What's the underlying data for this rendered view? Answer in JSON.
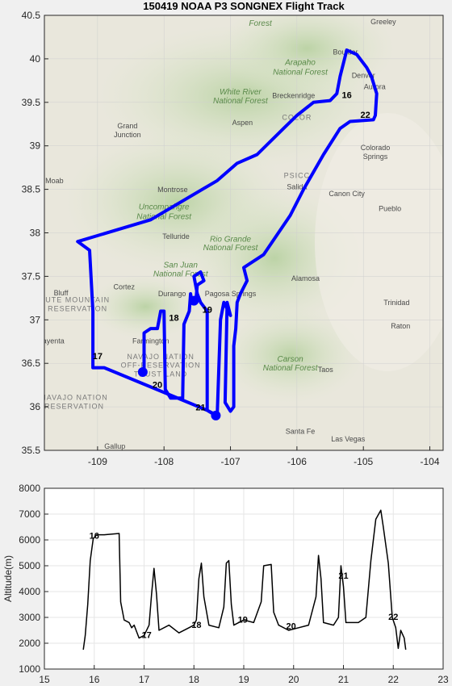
{
  "map_panel": {
    "title": "150419 NOAA P3 SONGNEX Flight Track",
    "lon_ticks": [
      "-109",
      "-108",
      "-107",
      "-106",
      "-105",
      "-104"
    ],
    "lat_ticks": [
      "40.5",
      "40",
      "39.5",
      "39",
      "38.5",
      "38",
      "37.5",
      "37",
      "36.5",
      "36",
      "35.5"
    ],
    "lon_range": [
      -109.8,
      -103.8
    ],
    "lat_range": [
      35.5,
      40.5
    ],
    "track_color": "#0000ff",
    "track": [
      [
        -107.22,
        35.9
      ],
      [
        -107.35,
        35.96
      ],
      [
        -108.9,
        36.45
      ],
      [
        -109.07,
        36.45
      ],
      [
        -109.07,
        37.1
      ],
      [
        -109.12,
        37.8
      ],
      [
        -109.3,
        37.9
      ],
      [
        -108.2,
        38.15
      ],
      [
        -107.2,
        38.6
      ],
      [
        -106.9,
        38.8
      ],
      [
        -106.6,
        38.9
      ],
      [
        -106.2,
        39.2
      ],
      [
        -106.0,
        39.35
      ],
      [
        -105.75,
        39.5
      ],
      [
        -105.5,
        39.52
      ],
      [
        -105.4,
        39.6
      ],
      [
        -105.35,
        39.8
      ],
      [
        -105.25,
        40.1
      ],
      [
        -105.1,
        40.05
      ],
      [
        -104.95,
        39.9
      ],
      [
        -104.88,
        39.8
      ],
      [
        -104.8,
        39.6
      ],
      [
        -104.82,
        39.35
      ],
      [
        -104.85,
        39.3
      ],
      [
        -105.2,
        39.28
      ],
      [
        -105.35,
        39.2
      ],
      [
        -105.6,
        38.9
      ],
      [
        -105.9,
        38.5
      ],
      [
        -106.1,
        38.2
      ],
      [
        -106.5,
        37.75
      ],
      [
        -106.8,
        37.6
      ],
      [
        -106.75,
        37.45
      ],
      [
        -106.85,
        37.3
      ],
      [
        -106.9,
        37.2
      ],
      [
        -106.92,
        36.9
      ],
      [
        -106.95,
        36.7
      ],
      [
        -106.95,
        36.0
      ],
      [
        -107.0,
        35.95
      ],
      [
        -107.08,
        36.05
      ],
      [
        -107.05,
        37.2
      ],
      [
        -107.0,
        37.05
      ],
      [
        -107.1,
        37.2
      ],
      [
        -107.15,
        37.0
      ],
      [
        -107.2,
        35.9
      ],
      [
        -107.35,
        35.96
      ],
      [
        -107.35,
        37.1
      ],
      [
        -107.45,
        37.2
      ],
      [
        -107.5,
        37.3
      ],
      [
        -107.55,
        37.5
      ],
      [
        -107.45,
        37.55
      ],
      [
        -107.4,
        37.45
      ],
      [
        -107.5,
        37.4
      ],
      [
        -107.52,
        37.22
      ],
      [
        -107.58,
        37.2
      ],
      [
        -107.6,
        37.3
      ],
      [
        -107.62,
        37.1
      ],
      [
        -107.7,
        36.95
      ],
      [
        -107.72,
        36.1
      ],
      [
        -107.9,
        36.1
      ],
      [
        -107.98,
        36.2
      ],
      [
        -108.0,
        37.1
      ],
      [
        -108.05,
        37.1
      ],
      [
        -108.1,
        36.9
      ],
      [
        -108.2,
        36.9
      ],
      [
        -108.3,
        36.85
      ],
      [
        -108.3,
        36.4
      ]
    ],
    "markers": [
      [
        -108.32,
        36.4
      ],
      [
        -107.55,
        37.22
      ],
      [
        -107.22,
        35.9
      ]
    ],
    "hour_labels": [
      {
        "text": "16",
        "lon": -105.25,
        "lat": 39.55
      },
      {
        "text": "22",
        "lon": -104.97,
        "lat": 39.32
      },
      {
        "text": "17",
        "lon": -109.0,
        "lat": 36.55
      },
      {
        "text": "18",
        "lon": -107.85,
        "lat": 36.99
      },
      {
        "text": "19",
        "lon": -107.35,
        "lat": 37.08
      },
      {
        "text": "20",
        "lon": -108.1,
        "lat": 36.22
      },
      {
        "text": "21",
        "lon": -107.45,
        "lat": 35.96
      }
    ],
    "places": [
      {
        "text": "Forest",
        "lon": -106.55,
        "lat": 40.38,
        "kind": "forest"
      },
      {
        "text": "Arapaho",
        "lon": -105.95,
        "lat": 39.93,
        "kind": "forest"
      },
      {
        "text": "National Forest",
        "lon": -105.95,
        "lat": 39.82,
        "kind": "forest"
      },
      {
        "text": "White River",
        "lon": -106.85,
        "lat": 39.59,
        "kind": "forest"
      },
      {
        "text": "National Forest",
        "lon": -106.85,
        "lat": 39.49,
        "kind": "forest"
      },
      {
        "text": "Uncompahgre",
        "lon": -108.0,
        "lat": 38.27,
        "kind": "forest"
      },
      {
        "text": "National Forest",
        "lon": -108.0,
        "lat": 38.16,
        "kind": "forest"
      },
      {
        "text": "Rio Grande",
        "lon": -107.0,
        "lat": 37.9,
        "kind": "forest"
      },
      {
        "text": "National Forest",
        "lon": -107.0,
        "lat": 37.8,
        "kind": "forest"
      },
      {
        "text": "San Juan",
        "lon": -107.75,
        "lat": 37.6,
        "kind": "forest"
      },
      {
        "text": "National Forest",
        "lon": -107.75,
        "lat": 37.5,
        "kind": "forest"
      },
      {
        "text": "Carson",
        "lon": -106.1,
        "lat": 36.52,
        "kind": "forest"
      },
      {
        "text": "National Forest",
        "lon": -106.1,
        "lat": 36.42,
        "kind": "forest"
      },
      {
        "text": "COLOR",
        "lon": -106.0,
        "lat": 39.3,
        "kind": "res"
      },
      {
        "text": "PSICC",
        "lon": -106.0,
        "lat": 38.63,
        "kind": "res"
      },
      {
        "text": "UTE MOUNTAIN",
        "lon": -109.3,
        "lat": 37.2,
        "kind": "res"
      },
      {
        "text": "RESERVATION",
        "lon": -109.3,
        "lat": 37.1,
        "kind": "res"
      },
      {
        "text": "NAVAJO NATION",
        "lon": -108.05,
        "lat": 36.55,
        "kind": "res"
      },
      {
        "text": "OFF-RESERVATION",
        "lon": -108.05,
        "lat": 36.45,
        "kind": "res"
      },
      {
        "text": "TRUST LAND",
        "lon": -108.05,
        "lat": 36.35,
        "kind": "res"
      },
      {
        "text": "NAVAJO NATION",
        "lon": -109.35,
        "lat": 36.08,
        "kind": "res"
      },
      {
        "text": "RESERVATION",
        "lon": -109.35,
        "lat": 35.98,
        "kind": "res"
      },
      {
        "text": "Boulder",
        "lon": -105.27,
        "lat": 40.05,
        "kind": "place"
      },
      {
        "text": "Greeley",
        "lon": -104.7,
        "lat": 40.4,
        "kind": "place"
      },
      {
        "text": "Denver",
        "lon": -105.0,
        "lat": 39.78,
        "kind": "place"
      },
      {
        "text": "Aurora",
        "lon": -104.83,
        "lat": 39.65,
        "kind": "place"
      },
      {
        "text": "Breckenridge",
        "lon": -106.05,
        "lat": 39.55,
        "kind": "place"
      },
      {
        "text": "Aspen",
        "lon": -106.82,
        "lat": 39.24,
        "kind": "place"
      },
      {
        "text": "Grand",
        "lon": -108.55,
        "lat": 39.2,
        "kind": "place"
      },
      {
        "text": "Junction",
        "lon": -108.55,
        "lat": 39.1,
        "kind": "place"
      },
      {
        "text": "Moab",
        "lon": -109.65,
        "lat": 38.57,
        "kind": "place"
      },
      {
        "text": "Colorado",
        "lon": -104.82,
        "lat": 38.95,
        "kind": "place"
      },
      {
        "text": "Springs",
        "lon": -104.82,
        "lat": 38.85,
        "kind": "place"
      },
      {
        "text": "Montrose",
        "lon": -107.87,
        "lat": 38.47,
        "kind": "place"
      },
      {
        "text": "Salida",
        "lon": -106.0,
        "lat": 38.5,
        "kind": "place"
      },
      {
        "text": "Canon City",
        "lon": -105.25,
        "lat": 38.42,
        "kind": "place"
      },
      {
        "text": "Pueblo",
        "lon": -104.6,
        "lat": 38.25,
        "kind": "place"
      },
      {
        "text": "Telluride",
        "lon": -107.82,
        "lat": 37.93,
        "kind": "place"
      },
      {
        "text": "Alamosa",
        "lon": -105.87,
        "lat": 37.45,
        "kind": "place"
      },
      {
        "text": "Cortez",
        "lon": -108.6,
        "lat": 37.35,
        "kind": "place"
      },
      {
        "text": "Durango",
        "lon": -107.88,
        "lat": 37.27,
        "kind": "place"
      },
      {
        "text": "Pagosa Springs",
        "lon": -107.0,
        "lat": 37.27,
        "kind": "place"
      },
      {
        "text": "Bluff",
        "lon": -109.55,
        "lat": 37.28,
        "kind": "place"
      },
      {
        "text": "Trinidad",
        "lon": -104.5,
        "lat": 37.17,
        "kind": "place"
      },
      {
        "text": "Raton",
        "lon": -104.44,
        "lat": 36.9,
        "kind": "place"
      },
      {
        "text": "Farmington",
        "lon": -108.2,
        "lat": 36.73,
        "kind": "place"
      },
      {
        "text": "Taos",
        "lon": -105.57,
        "lat": 36.4,
        "kind": "place"
      },
      {
        "text": "Santa Fe",
        "lon": -105.95,
        "lat": 35.69,
        "kind": "place"
      },
      {
        "text": "Las Vegas",
        "lon": -105.23,
        "lat": 35.6,
        "kind": "place"
      },
      {
        "text": "Gallup",
        "lon": -108.74,
        "lat": 35.52,
        "kind": "place"
      },
      {
        "text": "Kayenta",
        "lon": -109.7,
        "lat": 36.73,
        "kind": "place"
      }
    ]
  },
  "altitude_panel": {
    "ylabel": "Altitude(m)",
    "x_ticks": [
      "15",
      "16",
      "17",
      "18",
      "19",
      "20",
      "21",
      "22",
      "23"
    ],
    "y_ticks": [
      "1000",
      "2000",
      "3000",
      "4000",
      "5000",
      "6000",
      "7000",
      "8000"
    ],
    "x_range": [
      15,
      23
    ],
    "y_range": [
      1000,
      8000
    ],
    "line_color": "#000000",
    "series": [
      [
        15.78,
        1750
      ],
      [
        15.82,
        2300
      ],
      [
        15.87,
        3500
      ],
      [
        15.92,
        5200
      ],
      [
        15.98,
        6050
      ],
      [
        16.05,
        6200
      ],
      [
        16.2,
        6200
      ],
      [
        16.5,
        6250
      ],
      [
        16.53,
        3600
      ],
      [
        16.6,
        2900
      ],
      [
        16.7,
        2800
      ],
      [
        16.75,
        2600
      ],
      [
        16.8,
        2700
      ],
      [
        16.9,
        2200
      ],
      [
        17.0,
        2300
      ],
      [
        17.1,
        2700
      ],
      [
        17.15,
        3900
      ],
      [
        17.2,
        4900
      ],
      [
        17.25,
        3900
      ],
      [
        17.3,
        2500
      ],
      [
        17.5,
        2700
      ],
      [
        17.7,
        2400
      ],
      [
        17.9,
        2600
      ],
      [
        18.0,
        2700
      ],
      [
        18.05,
        2900
      ],
      [
        18.1,
        4500
      ],
      [
        18.15,
        5100
      ],
      [
        18.2,
        3800
      ],
      [
        18.3,
        2700
      ],
      [
        18.5,
        2600
      ],
      [
        18.6,
        3400
      ],
      [
        18.65,
        5100
      ],
      [
        18.7,
        5200
      ],
      [
        18.75,
        3500
      ],
      [
        18.8,
        2700
      ],
      [
        19.0,
        2900
      ],
      [
        19.2,
        2800
      ],
      [
        19.35,
        3600
      ],
      [
        19.4,
        5000
      ],
      [
        19.55,
        5050
      ],
      [
        19.6,
        3200
      ],
      [
        19.7,
        2700
      ],
      [
        19.9,
        2500
      ],
      [
        20.1,
        2600
      ],
      [
        20.3,
        2700
      ],
      [
        20.45,
        3800
      ],
      [
        20.5,
        5400
      ],
      [
        20.55,
        4500
      ],
      [
        20.6,
        2800
      ],
      [
        20.8,
        2700
      ],
      [
        20.9,
        3000
      ],
      [
        20.95,
        5000
      ],
      [
        21.0,
        4200
      ],
      [
        21.05,
        2800
      ],
      [
        21.3,
        2800
      ],
      [
        21.45,
        3000
      ],
      [
        21.55,
        5200
      ],
      [
        21.65,
        6800
      ],
      [
        21.75,
        7150
      ],
      [
        21.8,
        6500
      ],
      [
        21.9,
        5100
      ],
      [
        21.98,
        3000
      ],
      [
        22.05,
        2600
      ],
      [
        22.1,
        1800
      ],
      [
        22.15,
        2500
      ],
      [
        22.22,
        2200
      ],
      [
        22.25,
        1750
      ]
    ],
    "hour_labels": [
      {
        "text": "16",
        "x": 16.0,
        "y": 6050
      },
      {
        "text": "17",
        "x": 17.05,
        "y": 2200
      },
      {
        "text": "18",
        "x": 18.05,
        "y": 2600
      },
      {
        "text": "19",
        "x": 18.98,
        "y": 2800
      },
      {
        "text": "20",
        "x": 19.95,
        "y": 2550
      },
      {
        "text": "21",
        "x": 21.0,
        "y": 4500
      },
      {
        "text": "22",
        "x": 22.0,
        "y": 2900
      }
    ]
  }
}
